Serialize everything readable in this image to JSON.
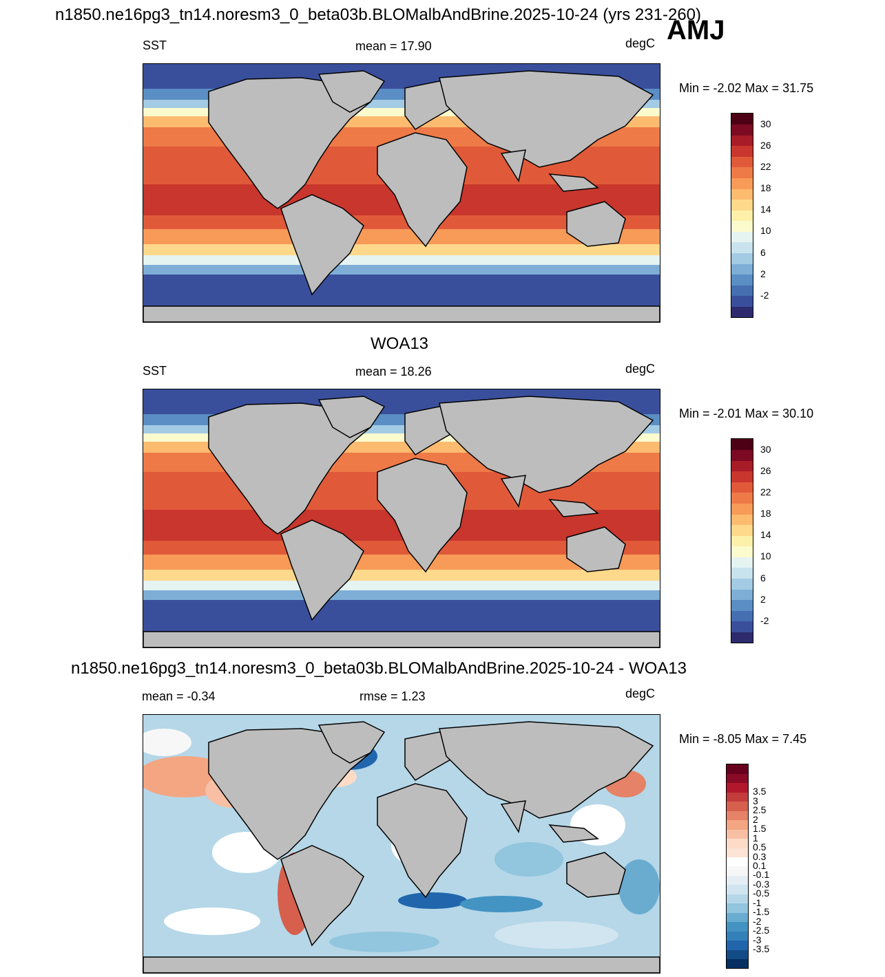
{
  "season": "AMJ",
  "land_color": "#bdbdbd",
  "panels": [
    {
      "title": "n1850.ne16pg3_tn14.noresm3_0_beta03b.BLOMalbAndBrine.2025-10-24 (yrs 231-260)",
      "left_label": "SST",
      "center_label": "mean =  17.90",
      "units": "degC",
      "minmax": "Min =  -2.02 Max =  31.75",
      "variant": "abs",
      "colorbar": {
        "colors": [
          "#2d2b6e",
          "#3a4f9c",
          "#456fb1",
          "#5a8ec4",
          "#7eaed6",
          "#a3cbe4",
          "#c8e3ee",
          "#e5f3f1",
          "#fbfbcd",
          "#fdf0a8",
          "#fed98c",
          "#fdbb70",
          "#f89a58",
          "#ee7a48",
          "#e05a3a",
          "#c8362d",
          "#a81c27",
          "#7c0a22",
          "#4d0015"
        ],
        "ticks": [
          "-2",
          "2",
          "6",
          "10",
          "14",
          "18",
          "22",
          "26",
          "30"
        ]
      }
    },
    {
      "title": "WOA13",
      "left_label": "SST",
      "center_label": "mean =  18.26",
      "units": "degC",
      "minmax": "Min =  -2.01 Max =  30.10",
      "variant": "abs",
      "colorbar": {
        "colors": [
          "#2d2b6e",
          "#3a4f9c",
          "#456fb1",
          "#5a8ec4",
          "#7eaed6",
          "#a3cbe4",
          "#c8e3ee",
          "#e5f3f1",
          "#fbfbcd",
          "#fdf0a8",
          "#fed98c",
          "#fdbb70",
          "#f89a58",
          "#ee7a48",
          "#e05a3a",
          "#c8362d",
          "#a81c27",
          "#7c0a22",
          "#4d0015"
        ],
        "ticks": [
          "-2",
          "2",
          "6",
          "10",
          "14",
          "18",
          "22",
          "26",
          "30"
        ]
      }
    },
    {
      "title": "n1850.ne16pg3_tn14.noresm3_0_beta03b.BLOMalbAndBrine.2025-10-24 - WOA13",
      "left_label": "mean =  -0.34",
      "center_label": "rmse =   1.23",
      "units": "degC",
      "minmax": "Min =  -8.05 Max =   7.45",
      "variant": "diff",
      "colorbar": {
        "colors": [
          "#053061",
          "#134b87",
          "#2166ac",
          "#3480b9",
          "#4393c3",
          "#6aacd0",
          "#92c5de",
          "#b5d7e8",
          "#d1e5f0",
          "#e4eef4",
          "#f7f7f7",
          "#ffffff",
          "#fbe3d5",
          "#fddbc7",
          "#f8bfa4",
          "#f4a582",
          "#e58267",
          "#d6604d",
          "#c43c3c",
          "#b2182b",
          "#8a0b25",
          "#67001f"
        ],
        "ticks": [
          "-3.5",
          "-3",
          "-2.5",
          "-2",
          "-1.5",
          "-1",
          "-0.5",
          "-0.3",
          "-0.1",
          "0.1",
          "0.3",
          "0.5",
          "1",
          "1.5",
          "2",
          "2.5",
          "3",
          "3.5"
        ]
      }
    }
  ]
}
